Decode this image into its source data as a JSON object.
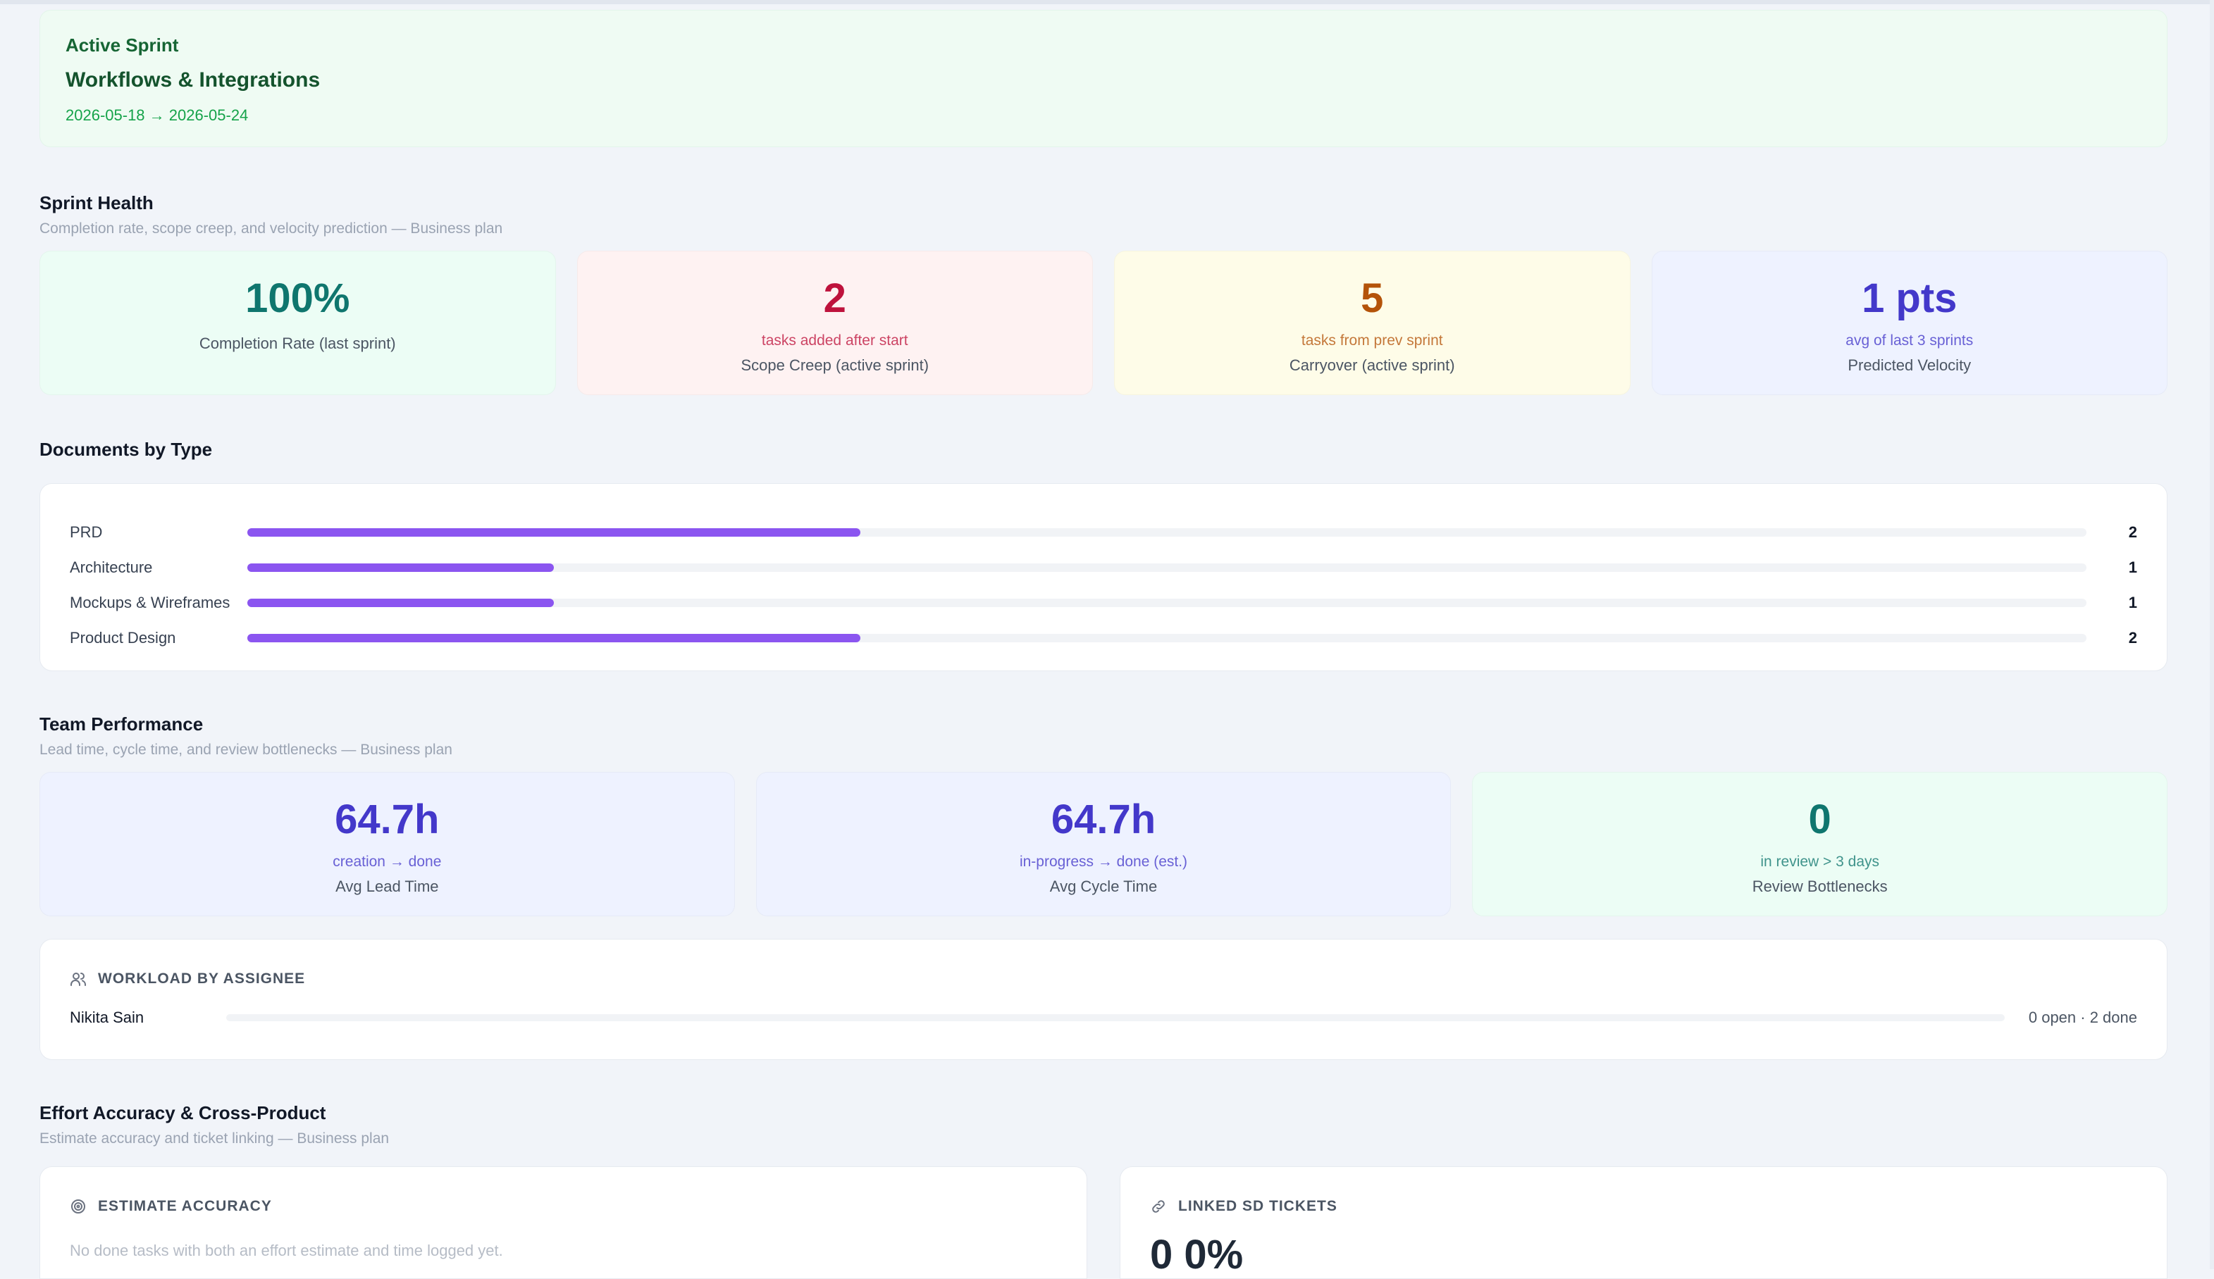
{
  "sprint": {
    "eyebrow": "Active Sprint",
    "title": "Workflows & Integrations",
    "dates": "2026-05-18 → 2026-05-24"
  },
  "sprint_health": {
    "title": "Sprint Health",
    "subtitle": "Completion rate, scope creep, and velocity prediction — Business plan",
    "stats": [
      {
        "value": "100%",
        "hint": "",
        "label": "Completion Rate (last sprint)",
        "color": "#0f766e",
        "bg": "#ecfdf5"
      },
      {
        "value": "2",
        "hint": "tasks added after start",
        "label": "Scope Creep (active sprint)",
        "color": "#be123c",
        "bg": "#fef2f2"
      },
      {
        "value": "5",
        "hint": "tasks from prev sprint",
        "label": "Carryover (active sprint)",
        "color": "#b45309",
        "bg": "#fefce8"
      },
      {
        "value": "1 pts",
        "hint": "avg of last 3 sprints",
        "label": "Predicted Velocity",
        "color": "#4338ca",
        "bg": "#eef2ff"
      }
    ]
  },
  "documents": {
    "title": "Documents by Type",
    "accent": "#8b55f0",
    "max": 6,
    "rows": [
      {
        "label": "PRD",
        "count": 2
      },
      {
        "label": "Architecture",
        "count": 1
      },
      {
        "label": "Mockups & Wireframes",
        "count": 1
      },
      {
        "label": "Product Design",
        "count": 2
      }
    ]
  },
  "team": {
    "title": "Team Performance",
    "subtitle": "Lead time, cycle time, and review bottlenecks — Business plan",
    "stats": [
      {
        "value": "64.7h",
        "hint": "creation → done",
        "label": "Avg Lead Time",
        "color": "#4338ca",
        "bg": "#eef2ff"
      },
      {
        "value": "64.7h",
        "hint": "in-progress → done (est.)",
        "label": "Avg Cycle Time",
        "color": "#4338ca",
        "bg": "#eef2ff"
      },
      {
        "value": "0",
        "hint": "in review > 3 days",
        "label": "Review Bottlenecks",
        "color": "#0f766e",
        "bg": "#ecfdf5"
      }
    ]
  },
  "workload": {
    "heading": "WORKLOAD BY ASSIGNEE",
    "icon": "users-icon",
    "rows": [
      {
        "name": "Nikita Sain",
        "meta": "0 open · 2 done",
        "open_fraction": 0
      }
    ]
  },
  "effort": {
    "title": "Effort Accuracy & Cross-Product",
    "subtitle": "Estimate accuracy and ticket linking — Business plan",
    "estimate": {
      "heading": "ESTIMATE ACCURACY",
      "icon": "target-icon",
      "empty_text": "No done tasks with both an effort estimate and time logged yet."
    },
    "linked": {
      "heading": "LINKED SD TICKETS",
      "icon": "link-icon",
      "value": "0 0%"
    }
  }
}
